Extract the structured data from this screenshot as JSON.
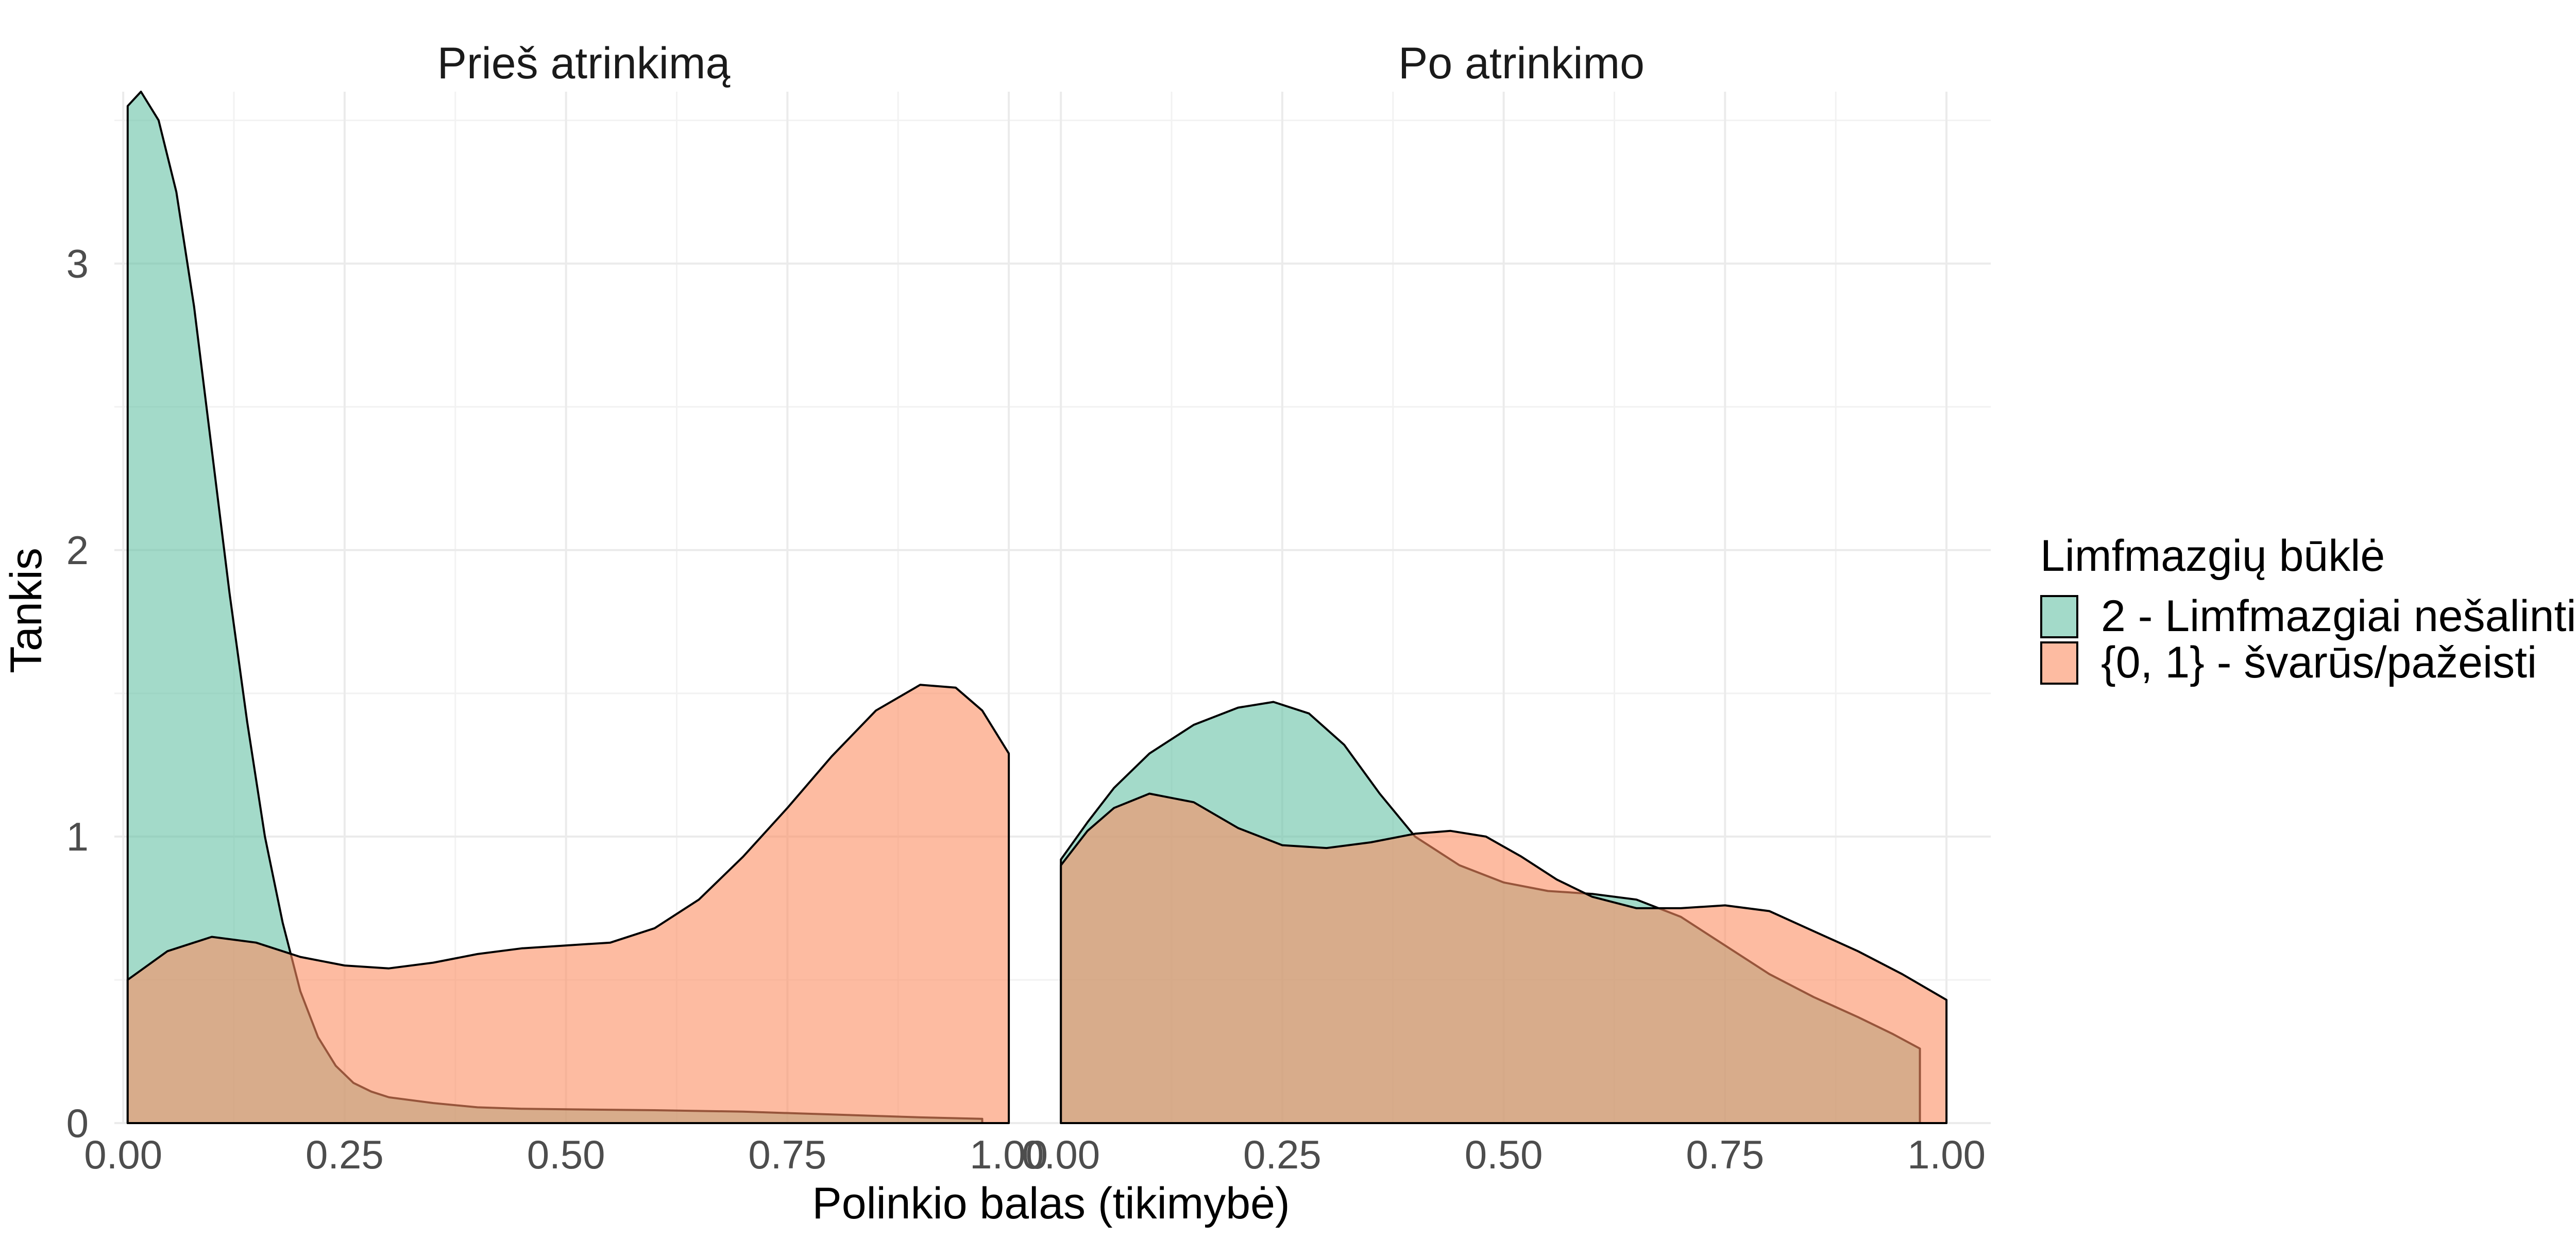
{
  "chart_data": {
    "type": "area",
    "subtype": "density",
    "xlabel": "Polinkio balas (tikimybė)",
    "ylabel": "Tankis",
    "legend": {
      "title": "Limfmazgių būklė",
      "position": "right",
      "entries": [
        {
          "name": "2 - Limfmazgiai nešalinti",
          "color": "#66C2A5"
        },
        {
          "name": "{0, 1} - švarūs/pažeisti",
          "color": "#FC8D62"
        }
      ]
    },
    "fill_opacity": 0.6,
    "grid": true,
    "xlim": [
      -0.01,
      1.05
    ],
    "ylim": [
      0,
      3.6
    ],
    "x_ticks": [
      "0.00",
      "0.25",
      "0.50",
      "0.75",
      "1.00"
    ],
    "x_tick_values": [
      0,
      0.25,
      0.5,
      0.75,
      1.0
    ],
    "y_ticks": [
      "0",
      "1",
      "2",
      "3"
    ],
    "y_tick_values": [
      0,
      1,
      2,
      3
    ],
    "panels": [
      {
        "title": "Prieš atrinkimą",
        "series": [
          {
            "name": "2 - Limfmazgiai nešalinti",
            "color": "#66C2A5",
            "x": [
              0.005,
              0.02,
              0.04,
              0.06,
              0.08,
              0.1,
              0.12,
              0.14,
              0.16,
              0.18,
              0.2,
              0.22,
              0.24,
              0.26,
              0.28,
              0.3,
              0.35,
              0.4,
              0.45,
              0.5,
              0.6,
              0.7,
              0.8,
              0.9,
              0.97
            ],
            "y": [
              3.55,
              3.6,
              3.5,
              3.25,
              2.85,
              2.35,
              1.85,
              1.4,
              1.0,
              0.7,
              0.46,
              0.3,
              0.2,
              0.14,
              0.11,
              0.09,
              0.07,
              0.055,
              0.05,
              0.048,
              0.045,
              0.04,
              0.03,
              0.02,
              0.015
            ]
          },
          {
            "name": "{0, 1} - švarūs/pažeisti",
            "color": "#FC8D62",
            "x": [
              0.005,
              0.05,
              0.1,
              0.15,
              0.2,
              0.25,
              0.3,
              0.35,
              0.4,
              0.45,
              0.5,
              0.55,
              0.6,
              0.65,
              0.7,
              0.75,
              0.8,
              0.85,
              0.9,
              0.94,
              0.97,
              1.0
            ],
            "y": [
              0.5,
              0.6,
              0.65,
              0.63,
              0.58,
              0.55,
              0.54,
              0.56,
              0.59,
              0.61,
              0.62,
              0.63,
              0.68,
              0.78,
              0.93,
              1.1,
              1.28,
              1.44,
              1.53,
              1.52,
              1.44,
              1.29
            ]
          }
        ]
      },
      {
        "title": "Po atrinkimo",
        "series": [
          {
            "name": "2 - Limfmazgiai nešalinti",
            "color": "#66C2A5",
            "x": [
              0.0,
              0.03,
              0.06,
              0.1,
              0.15,
              0.2,
              0.24,
              0.28,
              0.32,
              0.36,
              0.4,
              0.45,
              0.5,
              0.55,
              0.6,
              0.65,
              0.7,
              0.75,
              0.8,
              0.85,
              0.9,
              0.94,
              0.97
            ],
            "y": [
              0.92,
              1.05,
              1.17,
              1.29,
              1.39,
              1.45,
              1.47,
              1.43,
              1.32,
              1.15,
              1.0,
              0.9,
              0.84,
              0.81,
              0.8,
              0.78,
              0.72,
              0.62,
              0.52,
              0.44,
              0.37,
              0.31,
              0.26
            ]
          },
          {
            "name": "{0, 1} - švarūs/pažeisti",
            "color": "#FC8D62",
            "x": [
              0.0,
              0.03,
              0.06,
              0.1,
              0.15,
              0.2,
              0.25,
              0.3,
              0.35,
              0.4,
              0.44,
              0.48,
              0.52,
              0.56,
              0.6,
              0.65,
              0.7,
              0.75,
              0.8,
              0.85,
              0.9,
              0.95,
              1.0
            ],
            "y": [
              0.9,
              1.02,
              1.1,
              1.15,
              1.12,
              1.03,
              0.97,
              0.96,
              0.98,
              1.01,
              1.02,
              1.0,
              0.93,
              0.85,
              0.79,
              0.75,
              0.75,
              0.76,
              0.74,
              0.67,
              0.6,
              0.52,
              0.43
            ]
          }
        ]
      }
    ]
  }
}
